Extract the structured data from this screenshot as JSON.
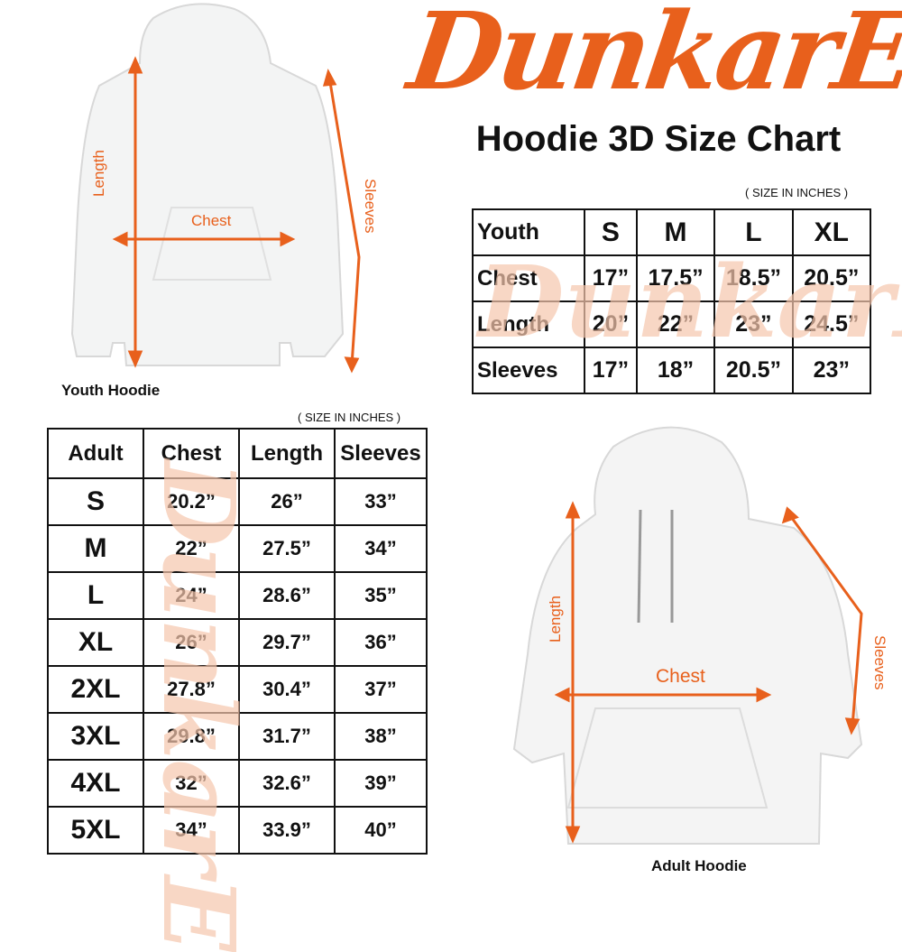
{
  "brand": {
    "logo_text": "DunkarE",
    "accent": "#e8601c"
  },
  "title": "Hoodie 3D Size Chart",
  "youth": {
    "caption": "Youth Hoodie",
    "units": "( SIZE IN INCHES )",
    "labels": {
      "length": "Length",
      "chest": "Chest",
      "sleeves": "Sleeves"
    },
    "headers": [
      "Youth",
      "S",
      "M",
      "L",
      "XL"
    ],
    "rows": [
      [
        "Chest",
        "17”",
        "17.5”",
        "18.5”",
        "20.5”"
      ],
      [
        "Length",
        "20”",
        "22”",
        "23”",
        "24.5”"
      ],
      [
        "Sleeves",
        "17”",
        "18”",
        "20.5”",
        "23”"
      ]
    ]
  },
  "adult": {
    "caption": "Adult Hoodie",
    "units": "( SIZE IN INCHES )",
    "labels": {
      "length": "Length",
      "chest": "Chest",
      "sleeves": "Sleeves"
    },
    "headers": [
      "Adult",
      "Chest",
      "Length",
      "Sleeves"
    ],
    "rows": [
      [
        "S",
        "20.2”",
        "26”",
        "33”"
      ],
      [
        "M",
        "22”",
        "27.5”",
        "34”"
      ],
      [
        "L",
        "24”",
        "28.6”",
        "35”"
      ],
      [
        "XL",
        "26”",
        "29.7”",
        "36”"
      ],
      [
        "2XL",
        "27.8”",
        "30.4”",
        "37”"
      ],
      [
        "3XL",
        "29.8”",
        "31.7”",
        "38”"
      ],
      [
        "4XL",
        "32”",
        "32.6”",
        "39”"
      ],
      [
        "5XL",
        "34”",
        "33.9”",
        "40”"
      ]
    ]
  }
}
